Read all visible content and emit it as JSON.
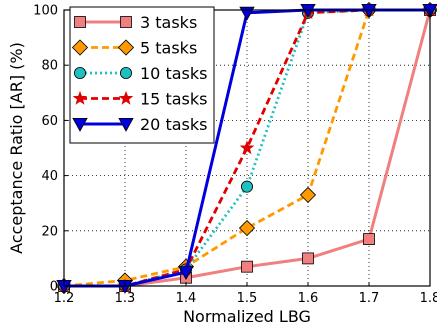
{
  "chart_data": {
    "type": "line",
    "xlabel": "Normalized LBG",
    "ylabel": "Acceptance Ratio [AR] (%)",
    "xlim": [
      1.2,
      1.8
    ],
    "ylim": [
      0,
      100
    ],
    "xticks": [
      "1.2",
      "1.3",
      "1.4",
      "1.5",
      "1.6",
      "1.7",
      "1.8"
    ],
    "yticks": [
      "0",
      "20",
      "40",
      "60",
      "80",
      "100"
    ],
    "grid": true,
    "legend_position": "top-left",
    "x": [
      1.2,
      1.3,
      1.4,
      1.5,
      1.6,
      1.7,
      1.8
    ],
    "series": [
      {
        "name": "3 tasks",
        "values": [
          0,
          0,
          3,
          7,
          10,
          17,
          100
        ],
        "color": "#f08080",
        "line": "solid",
        "marker": "square"
      },
      {
        "name": "5 tasks",
        "values": [
          0,
          2,
          7,
          21,
          33,
          100,
          100
        ],
        "color": "#ff9900",
        "line": "dashed",
        "marker": "diamond"
      },
      {
        "name": "10 tasks",
        "values": [
          0,
          0,
          6,
          36,
          99,
          100,
          100
        ],
        "color": "#20c0c0",
        "line": "dotted",
        "marker": "circle"
      },
      {
        "name": "15 tasks",
        "values": [
          0,
          0,
          6,
          50,
          99,
          100,
          100
        ],
        "color": "#e00000",
        "line": "dashed",
        "marker": "star"
      },
      {
        "name": "20 tasks",
        "values": [
          0,
          0,
          5,
          99,
          100,
          100,
          100
        ],
        "color": "#0000dd",
        "line": "solid",
        "marker": "triangle-down"
      }
    ]
  }
}
